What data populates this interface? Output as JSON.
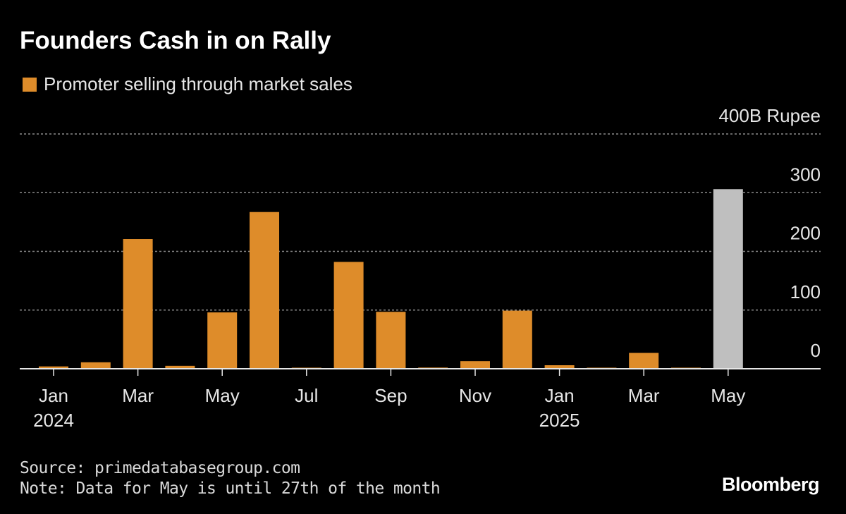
{
  "chart_data": {
    "type": "bar",
    "title": "Founders Cash in on Rally",
    "legend": [
      {
        "name": "Promoter selling through market sales",
        "color": "#DE8C2A"
      }
    ],
    "unit_label": "400B Rupee",
    "ylim": [
      0,
      400
    ],
    "yticks": [
      0,
      100,
      200,
      300,
      400
    ],
    "grid": true,
    "x_tick_labels": [
      {
        "month": "Jan",
        "year": "2024",
        "index": 0
      },
      {
        "month": "Mar",
        "year": "",
        "index": 2
      },
      {
        "month": "May",
        "year": "",
        "index": 4
      },
      {
        "month": "Jul",
        "year": "",
        "index": 6
      },
      {
        "month": "Sep",
        "year": "",
        "index": 8
      },
      {
        "month": "Nov",
        "year": "",
        "index": 10
      },
      {
        "month": "Jan",
        "year": "2025",
        "index": 12
      },
      {
        "month": "Mar",
        "year": "",
        "index": 14
      },
      {
        "month": "May",
        "year": "",
        "index": 16
      }
    ],
    "categories": [
      "Jan 2024",
      "Feb 2024",
      "Mar 2024",
      "Apr 2024",
      "May 2024",
      "Jun 2024",
      "Jul 2024",
      "Aug 2024",
      "Sep 2024",
      "Oct 2024",
      "Nov 2024",
      "Dec 2024",
      "Jan 2025",
      "Feb 2025",
      "Mar 2025",
      "Apr 2025",
      "May 2025"
    ],
    "series": [
      {
        "name": "Promoter selling through market sales",
        "values": [
          4,
          11,
          221,
          5,
          96,
          267,
          1,
          182,
          97,
          2,
          13,
          99,
          6,
          1,
          27,
          1,
          306
        ],
        "colors": [
          "#DE8C2A",
          "#DE8C2A",
          "#DE8C2A",
          "#DE8C2A",
          "#DE8C2A",
          "#DE8C2A",
          "#DE8C2A",
          "#DE8C2A",
          "#DE8C2A",
          "#DE8C2A",
          "#DE8C2A",
          "#DE8C2A",
          "#DE8C2A",
          "#DE8C2A",
          "#DE8C2A",
          "#DE8C2A",
          "#BFBFBF"
        ]
      }
    ]
  },
  "footer": {
    "source": "Source: primedatabasegroup.com",
    "note": "Note: Data for May is until 27th of the month"
  },
  "brand": "Bloomberg"
}
